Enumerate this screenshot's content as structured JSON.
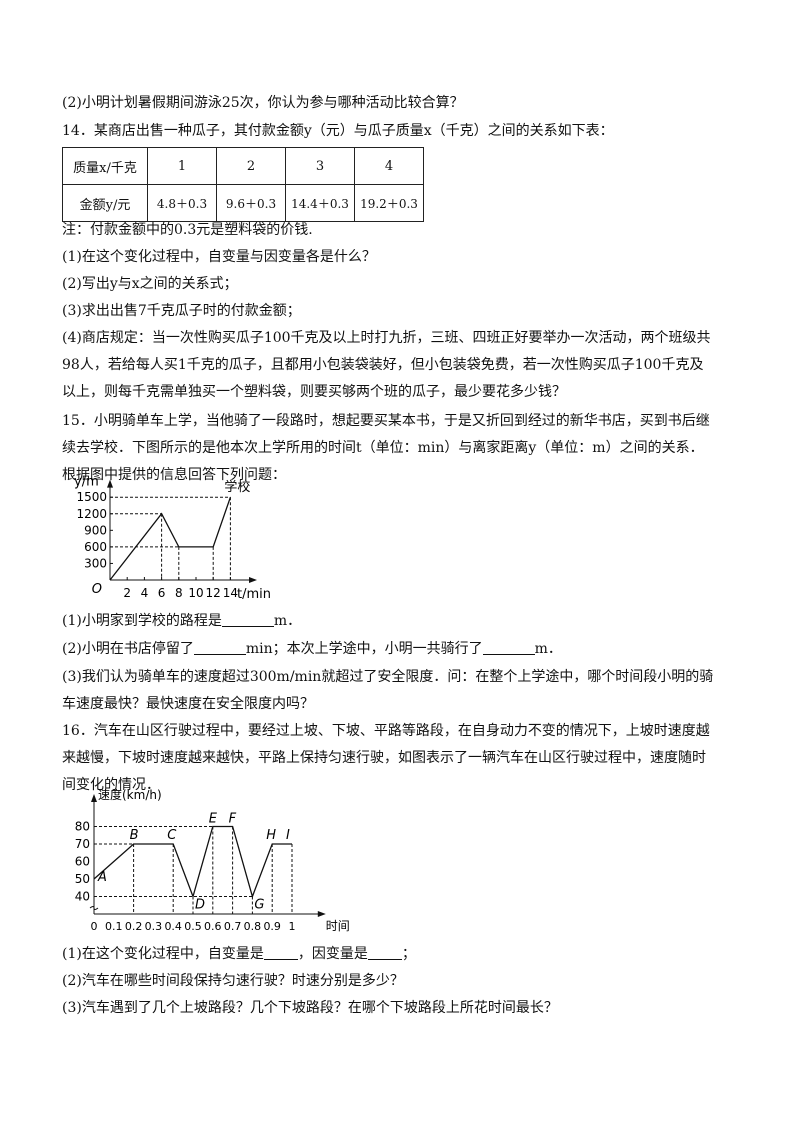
{
  "lines": {
    "q13_2": "(2)小明计划暑假期间游泳25次，你认为参与哪种活动比较合算？",
    "q14_intro": "14．某商店出售一种瓜子，其付款金额y（元）与瓜子质量x（千克）之间的关系如下表：",
    "q14_note": "注：付款金额中的0.3元是塑料袋的价钱.",
    "q14_1": "(1)在这个变化过程中，自变量与因变量各是什么？",
    "q14_2": "(2)写出y与x之间的关系式；",
    "q14_3": "(3)求出出售7千克瓜子时的付款金额；",
    "q14_4a": "(4)商店规定：当一次性购买瓜子100千克及以上时打九折，三班、四班正好要举办一次活动，两个班级共",
    "q14_4b": "98人，若给每人买1千克的瓜子，且都用小包装袋装好，但小包装袋免费，若一次性购买瓜子100千克及",
    "q14_4c": "以上，则每千克需单独买一个塑料袋，则要买够两个班的瓜子，最少要花多少钱？",
    "q15_a": "15．小明骑单车上学，当他骑了一段路时，想起要买某本书，于是又折回到经过的新华书店，买到书后继",
    "q15_b": "续去学校．下图所示的是他本次上学所用的时间t（单位：min）与离家距离y（单位：m）之间的关系．",
    "q15_c": "根据图中提供的信息回答下列问题：",
    "q15_1_pre": "(1)小明家到学校的路程是",
    "q15_1_post": "m．",
    "q15_2_pre": "(2)小明在书店停留了",
    "q15_2_mid": "min；本次上学途中，小明一共骑行了",
    "q15_2_post": "m．",
    "q15_3a": "(3)我们认为骑单车的速度超过300m/min就超过了安全限度．问：在整个上学途中，哪个时间段小明的骑",
    "q15_3b": "车速度最快？最快速度在安全限度内吗？",
    "q16_a": "16．汽车在山区行驶过程中，要经过上坡、下坡、平路等路段，在自身动力不变的情况下，上坡时速度越",
    "q16_b": "来越慢，下坡时速度越来越快，平路上保持匀速行驶，如图表示了一辆汽车在山区行驶过程中，速度随时",
    "q16_c": "间变化的情况．",
    "q16_1_pre": "(1)在这个变化过程中，自变量是",
    "q16_1_mid": "，因变量是",
    "q16_1_post": "；",
    "q16_2": "(2)汽车在哪些时间段保持匀速行驶？时速分别是多少？",
    "q16_3": "(3)汽车遇到了几个上坡路段？几个下坡路段？在哪个下坡路段上所花时间最长？"
  },
  "table": {
    "header_row": "质量x/千克",
    "value_row": "金额y/元",
    "x": [
      "1",
      "2",
      "3",
      "4"
    ],
    "y": [
      "4.8＋0.3",
      "9.6＋0.3",
      "14.4＋0.3",
      "19.2＋0.3"
    ]
  },
  "chart_data": [
    {
      "type": "line",
      "xlabel": "t/min",
      "ylabel": "y/m",
      "origin_label": "O",
      "x_ticks": [
        "2",
        "4",
        "6",
        "8",
        "10",
        "12",
        "14"
      ],
      "y_ticks": [
        "300",
        "600",
        "900",
        "1200",
        "1500"
      ],
      "x": [
        0,
        6,
        8,
        12,
        14
      ],
      "y": [
        0,
        1200,
        600,
        600,
        1500
      ],
      "xlim": [
        0,
        15
      ],
      "ylim": [
        0,
        1600
      ],
      "annotation": "学校"
    },
    {
      "type": "line",
      "xlabel": "时间",
      "ylabel": "速度(km/h)",
      "x_ticks": [
        "0",
        "0.1",
        "0.2",
        "0.3",
        "0.4",
        "0.5",
        "0.6",
        "0.7",
        "0.8",
        "0.9",
        "1"
      ],
      "y_ticks": [
        "40",
        "50",
        "60",
        "70",
        "80"
      ],
      "points": [
        {
          "label": "A",
          "x": 0,
          "y": 50
        },
        {
          "label": "B",
          "x": 0.2,
          "y": 70
        },
        {
          "label": "C",
          "x": 0.4,
          "y": 70
        },
        {
          "label": "D",
          "x": 0.5,
          "y": 40
        },
        {
          "label": "E",
          "x": 0.6,
          "y": 80
        },
        {
          "label": "F",
          "x": 0.7,
          "y": 80
        },
        {
          "label": "G",
          "x": 0.8,
          "y": 40
        },
        {
          "label": "H",
          "x": 0.9,
          "y": 70
        },
        {
          "label": "I",
          "x": 1,
          "y": 70
        }
      ],
      "xlim": [
        0,
        1.1
      ],
      "ylim": [
        30,
        90
      ]
    }
  ]
}
